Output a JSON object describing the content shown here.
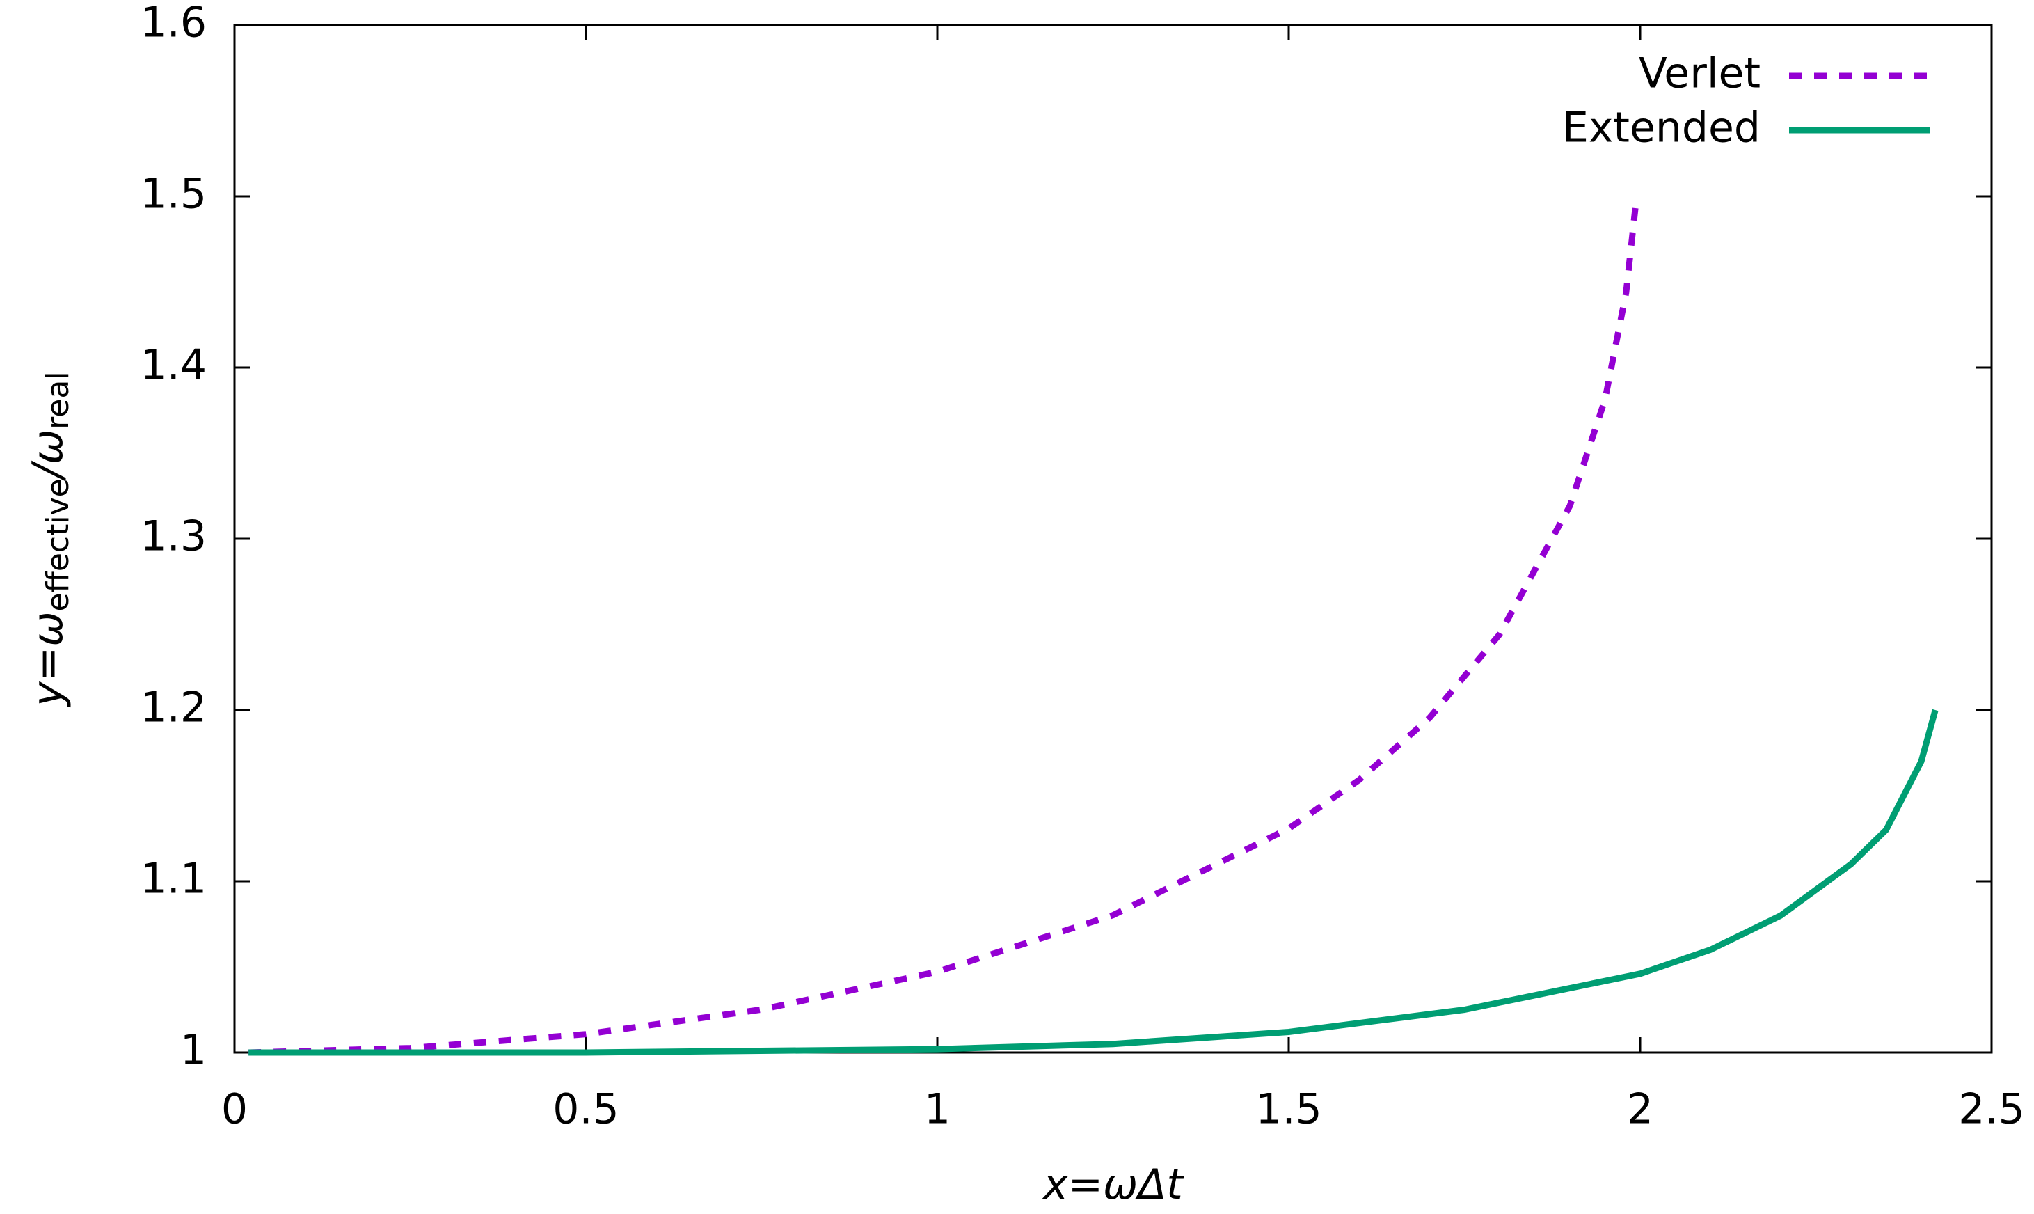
{
  "chart_data": {
    "type": "line",
    "x_label": [
      "x=ωΔt"
    ],
    "y_label": [
      "y=ω",
      "effective",
      "/ω",
      "real"
    ],
    "xlim": [
      0,
      2.5
    ],
    "xticks": [
      0,
      0.5,
      1,
      1.5,
      2,
      2.5
    ],
    "ylim": [
      1,
      1.6
    ],
    "yticks": [
      1,
      1.1,
      1.2,
      1.3,
      1.4,
      1.5,
      1.6
    ],
    "legend": "top-right",
    "series": [
      {
        "name": "Verlet",
        "color": "#9400d3",
        "dash": true,
        "x": [
          0.02,
          0.25,
          0.5,
          0.75,
          1.0,
          1.25,
          1.5,
          1.6,
          1.7,
          1.8,
          1.9,
          1.95,
          1.98,
          1.995
        ],
        "values": [
          1.0,
          1.0026,
          1.0107,
          1.0251,
          1.0472,
          1.0802,
          1.1308,
          1.1591,
          1.1953,
          1.2442,
          1.3192,
          1.3813,
          1.4437,
          1.5
        ]
      },
      {
        "name": "Extended",
        "color": "#009e73",
        "dash": false,
        "x": [
          0.02,
          0.5,
          1.0,
          1.25,
          1.5,
          1.75,
          2.0,
          2.1,
          2.2,
          2.3,
          2.35,
          2.4,
          2.42
        ],
        "values": [
          1.0,
          1.0,
          1.002,
          1.005,
          1.012,
          1.025,
          1.046,
          1.06,
          1.08,
          1.11,
          1.13,
          1.17,
          1.2
        ]
      }
    ]
  }
}
